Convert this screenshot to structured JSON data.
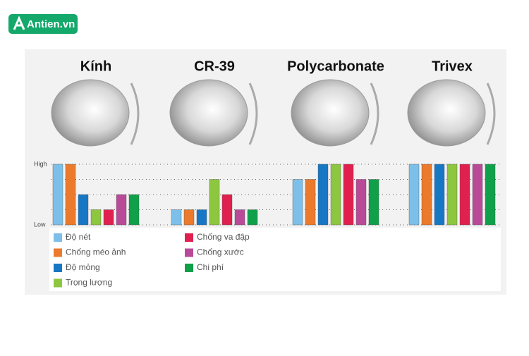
{
  "brand": "Antien.vn",
  "chart_data": {
    "type": "bar",
    "categories": [
      "Kính",
      "CR-39",
      "Polycarbonate",
      "Trivex"
    ],
    "series": [
      {
        "name": "Độ nét",
        "color": "#7cc0ea",
        "values": [
          4,
          1,
          3,
          4
        ]
      },
      {
        "name": "Chống méo ảnh",
        "color": "#ec7a2c",
        "values": [
          4,
          1,
          3,
          4
        ]
      },
      {
        "name": "Độ mỏng",
        "color": "#1877c4",
        "values": [
          2,
          1,
          4,
          4
        ]
      },
      {
        "name": "Trọng lượng",
        "color": "#8dc63f",
        "values": [
          1,
          3,
          4,
          4
        ]
      },
      {
        "name": "Chống va đập",
        "color": "#e0204f",
        "values": [
          1,
          2,
          4,
          4
        ]
      },
      {
        "name": "Chống xước",
        "color": "#b94a98",
        "values": [
          2,
          1,
          3,
          4
        ]
      },
      {
        "name": "Chi phí",
        "color": "#10a049",
        "values": [
          2,
          1,
          3,
          4
        ]
      }
    ],
    "ylim": [
      0,
      4
    ],
    "yticks": [
      {
        "value": 0,
        "label": "Low"
      },
      {
        "value": 1,
        "label": null
      },
      {
        "value": 2,
        "label": null
      },
      {
        "value": 3,
        "label": null
      },
      {
        "value": 4,
        "label": "High"
      }
    ],
    "grid": true
  }
}
